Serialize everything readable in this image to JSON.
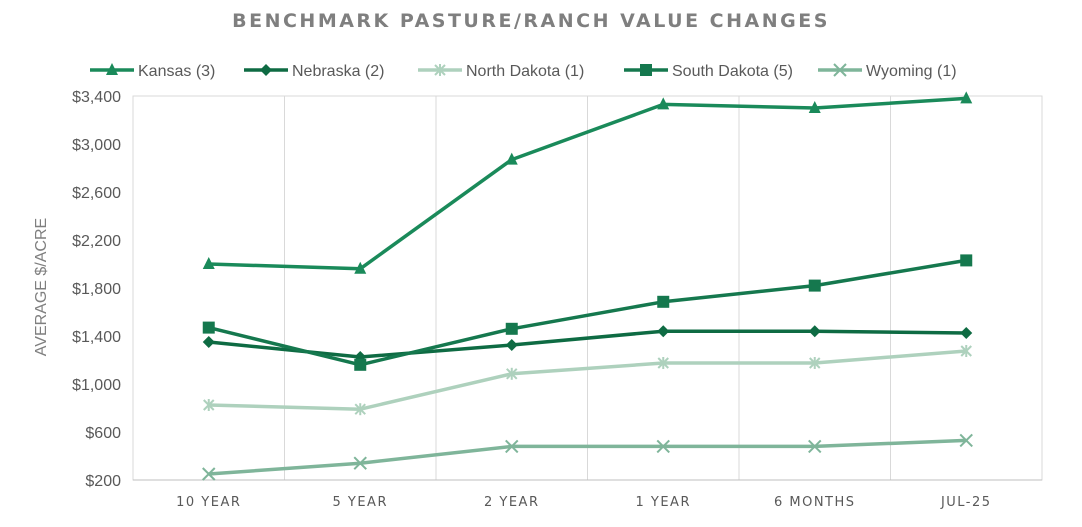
{
  "chart_data": {
    "type": "line",
    "title": "BENCHMARK PASTURE/RANCH VALUE CHANGES",
    "xlabel": "",
    "ylabel": "AVERAGE $/ACRE",
    "categories": [
      "10 YEAR",
      "5 YEAR",
      "2 YEAR",
      "1 YEAR",
      "6 MONTHS",
      "JUL-25"
    ],
    "ylim": [
      200,
      3400
    ],
    "yticks": [
      200,
      600,
      1000,
      1400,
      1800,
      2200,
      2600,
      3000,
      3400
    ],
    "ytick_labels": [
      "$200",
      "$600",
      "$1,000",
      "$1,400",
      "$1,800",
      "$2,200",
      "$2,600",
      "$3,000",
      "$3,400"
    ],
    "grid": "vertical",
    "legend_position": "top",
    "series": [
      {
        "name": "Kansas (3)",
        "color": "#1a8a5a",
        "marker": "triangle",
        "values": [
          2000,
          1960,
          2870,
          3330,
          3300,
          3380
        ]
      },
      {
        "name": "Nebraska  (2)",
        "color": "#0e6b43",
        "marker": "diamond",
        "values": [
          1350,
          1225,
          1325,
          1440,
          1440,
          1425
        ]
      },
      {
        "name": "North Dakota (1)",
        "color": "#aed1bd",
        "marker": "star",
        "values": [
          825,
          790,
          1085,
          1175,
          1175,
          1275
        ]
      },
      {
        "name": "South Dakota (5)",
        "color": "#15784e",
        "marker": "square",
        "values": [
          1470,
          1160,
          1460,
          1685,
          1820,
          2030
        ]
      },
      {
        "name": "Wyoming (1)",
        "color": "#7fb59a",
        "marker": "x",
        "values": [
          250,
          340,
          480,
          480,
          480,
          530
        ]
      }
    ]
  }
}
